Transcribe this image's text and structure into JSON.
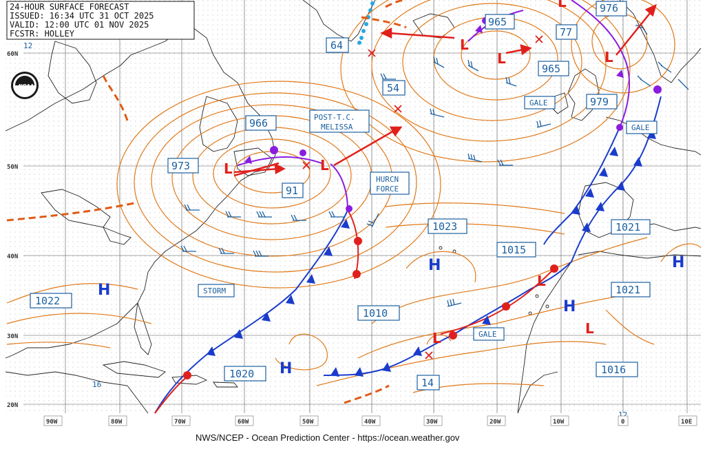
{
  "header": {
    "line1": "24-HOUR SURFACE FORECAST",
    "line2": "ISSUED: 16:34 UTC 31 OCT 2025",
    "line3": "VALID:  12:00 UTC 01 NOV 2025",
    "line4": "FCSTR:  HOLLEY"
  },
  "logo": {
    "text": "NOAA"
  },
  "footer": {
    "text": "NWS/NCEP - Ocean Prediction Center - https://ocean.weather.gov"
  },
  "latitudes": [
    "60N",
    "50N",
    "40N",
    "30N",
    "20N"
  ],
  "longitudes": [
    "90W",
    "80W",
    "70W",
    "60W",
    "50W",
    "40W",
    "30W",
    "20W",
    "10W",
    "0",
    "10E"
  ],
  "pressure_labels": [
    "965",
    "77",
    "976",
    "965",
    "979",
    "973",
    "966",
    "91",
    "1023",
    "1015",
    "1021",
    "1021",
    "1022",
    "1010",
    "1020",
    "1016"
  ],
  "small_numbers": [
    "64",
    "54",
    "14",
    "12",
    "16",
    "12"
  ],
  "tags": {
    "post_tc_1": "POST-T.C.",
    "post_tc_2": "MELISSA",
    "hurcn_1": "HURCN",
    "hurcn_2": "FORCE",
    "gale_1": "GALE",
    "gale_2": "GALE",
    "gale_3": "GALE",
    "storm": "STORM"
  },
  "systems": {
    "high": "H",
    "low": "L"
  },
  "colors": {
    "isobar": "#e07a1a",
    "cold_front": "#1a3ccc",
    "warm_front": "#e0201c",
    "occluded_front": "#8a1ce0",
    "text_blue": "#1a5fa0",
    "coast": "#222222",
    "grid": "#555555"
  }
}
